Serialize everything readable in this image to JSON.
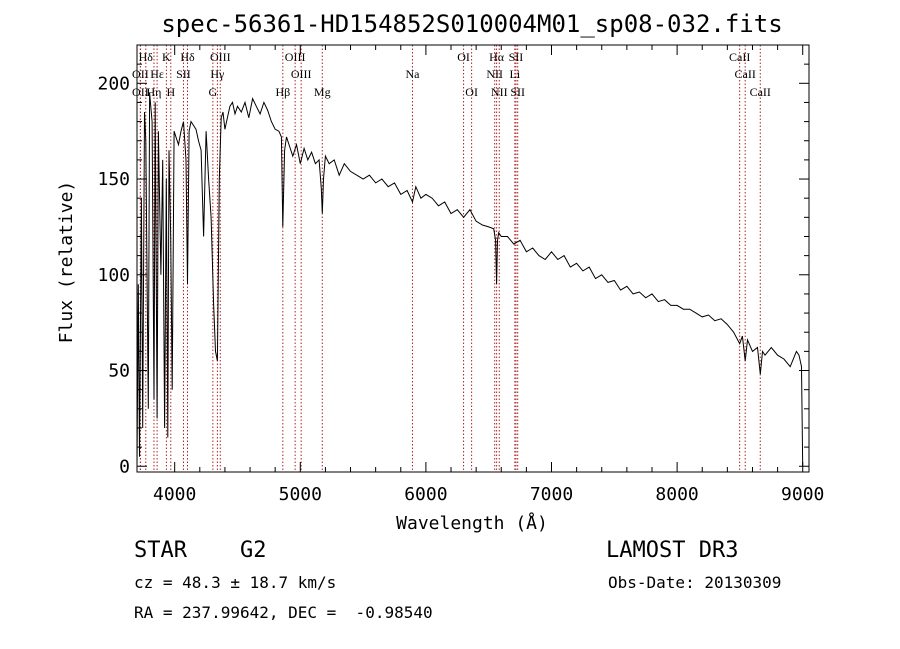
{
  "chart_data": {
    "type": "line",
    "title": "spec-56361-HD154852S010004M01_sp08-032.fits",
    "xlabel": "Wavelength (Å)",
    "ylabel": "Flux (relative)",
    "xlim": [
      3700,
      9050
    ],
    "ylim": [
      -3,
      220
    ],
    "x_ticks": [
      4000,
      5000,
      6000,
      7000,
      8000,
      9000
    ],
    "x_tick_labels": [
      "4000",
      "5000",
      "6000",
      "7000",
      "8000",
      "9000"
    ],
    "y_ticks": [
      0,
      50,
      100,
      150,
      200
    ],
    "y_tick_labels": [
      "0",
      "50",
      "100",
      "150",
      "200"
    ],
    "series": [
      {
        "name": "spectrum",
        "x": [
          3700,
          3710,
          3720,
          3735,
          3745,
          3760,
          3770,
          3790,
          3800,
          3820,
          3835,
          3845,
          3860,
          3870,
          3890,
          3905,
          3920,
          3933,
          3945,
          3955,
          3968,
          3980,
          3995,
          4010,
          4030,
          4050,
          4070,
          4090,
          4102,
          4115,
          4130,
          4150,
          4170,
          4190,
          4210,
          4230,
          4250,
          4270,
          4290,
          4310,
          4325,
          4340,
          4355,
          4370,
          4385,
          4400,
          4420,
          4440,
          4460,
          4480,
          4500,
          4530,
          4560,
          4590,
          4620,
          4650,
          4680,
          4710,
          4740,
          4770,
          4800,
          4830,
          4850,
          4861,
          4875,
          4890,
          4910,
          4940,
          4970,
          5000,
          5030,
          5060,
          5090,
          5120,
          5150,
          5167,
          5175,
          5185,
          5200,
          5230,
          5270,
          5310,
          5350,
          5400,
          5450,
          5500,
          5550,
          5600,
          5650,
          5700,
          5750,
          5800,
          5850,
          5893,
          5920,
          5960,
          6000,
          6050,
          6100,
          6150,
          6200,
          6250,
          6300,
          6350,
          6400,
          6450,
          6500,
          6540,
          6555,
          6563,
          6570,
          6580,
          6600,
          6650,
          6700,
          6750,
          6800,
          6850,
          6900,
          6950,
          7000,
          7050,
          7100,
          7150,
          7200,
          7250,
          7300,
          7350,
          7400,
          7450,
          7500,
          7550,
          7600,
          7650,
          7700,
          7750,
          7800,
          7850,
          7900,
          7950,
          8000,
          8050,
          8100,
          8150,
          8200,
          8250,
          8300,
          8350,
          8400,
          8450,
          8498,
          8520,
          8542,
          8560,
          8600,
          8640,
          8662,
          8680,
          8700,
          8750,
          8800,
          8850,
          8900,
          8950,
          8970,
          8990,
          9000
        ],
        "values": [
          0,
          95,
          5,
          140,
          20,
          185,
          170,
          30,
          195,
          180,
          35,
          190,
          25,
          175,
          100,
          160,
          20,
          150,
          15,
          165,
          120,
          40,
          175,
          172,
          168,
          175,
          180,
          160,
          95,
          175,
          180,
          178,
          176,
          170,
          165,
          120,
          175,
          150,
          130,
          85,
          60,
          55,
          150,
          182,
          185,
          176,
          182,
          188,
          190,
          184,
          188,
          185,
          190,
          182,
          192,
          188,
          184,
          190,
          186,
          180,
          176,
          175,
          172,
          125,
          165,
          172,
          168,
          162,
          168,
          158,
          166,
          160,
          164,
          158,
          160,
          145,
          132,
          150,
          162,
          158,
          160,
          152,
          158,
          154,
          152,
          150,
          152,
          148,
          150,
          146,
          148,
          142,
          144,
          138,
          146,
          140,
          142,
          140,
          136,
          138,
          132,
          134,
          130,
          134,
          128,
          126,
          125,
          124,
          118,
          95,
          118,
          122,
          120,
          120,
          116,
          118,
          112,
          114,
          110,
          108,
          112,
          108,
          110,
          104,
          106,
          102,
          104,
          98,
          100,
          96,
          97,
          92,
          94,
          90,
          91,
          88,
          90,
          86,
          87,
          84,
          84,
          82,
          82,
          80,
          78,
          79,
          76,
          77,
          74,
          70,
          64,
          68,
          55,
          66,
          60,
          62,
          48,
          60,
          58,
          62,
          58,
          56,
          52,
          60,
          58,
          52,
          0
        ]
      }
    ],
    "lines": [
      {
        "label": "Hδ",
        "x": 3770,
        "row": 1
      },
      {
        "label": "OII",
        "x": 3727,
        "row": 2
      },
      {
        "label": "OII",
        "x": 3727,
        "row": 3
      },
      {
        "label": "K",
        "x": 3934,
        "row": 1
      },
      {
        "label": "H",
        "x": 3969,
        "row": 3
      },
      {
        "label": "Hε",
        "x": 3860,
        "row": 2
      },
      {
        "label": "Hη",
        "x": 3835,
        "row": 3
      },
      {
        "label": "SII",
        "x": 4070,
        "row": 2
      },
      {
        "label": "Hδ",
        "x": 4102,
        "row": 1
      },
      {
        "label": "OIII",
        "x": 4363,
        "row": 1
      },
      {
        "label": "Hγ",
        "x": 4340,
        "row": 2
      },
      {
        "label": "G",
        "x": 4304,
        "row": 3
      },
      {
        "label": "Hβ",
        "x": 4861,
        "row": 3
      },
      {
        "label": "OIII",
        "x": 4959,
        "row": 1
      },
      {
        "label": "OIII",
        "x": 5007,
        "row": 2
      },
      {
        "label": "Mg",
        "x": 5175,
        "row": 3
      },
      {
        "label": "Na",
        "x": 5893,
        "row": 2
      },
      {
        "label": "OI",
        "x": 6300,
        "row": 1
      },
      {
        "label": "OI",
        "x": 6364,
        "row": 3
      },
      {
        "label": "Hα",
        "x": 6563,
        "row": 1
      },
      {
        "label": "NII",
        "x": 6548,
        "row": 2
      },
      {
        "label": "NII",
        "x": 6584,
        "row": 3
      },
      {
        "label": "SII",
        "x": 6717,
        "row": 1
      },
      {
        "label": "Li",
        "x": 6708,
        "row": 2
      },
      {
        "label": "SII",
        "x": 6731,
        "row": 3
      },
      {
        "label": "CaII",
        "x": 8498,
        "row": 1
      },
      {
        "label": "CaII",
        "x": 8542,
        "row": 2
      },
      {
        "label": "CaII",
        "x": 8662,
        "row": 3
      }
    ]
  },
  "info": {
    "class": "STAR",
    "subclass": "G2",
    "cz": "cz = 48.3 ± 18.7 km/s",
    "coords": "RA = 237.99642, DEC =  -0.98540",
    "survey": "LAMOST DR3",
    "obs_date": "Obs-Date: 20130309"
  }
}
